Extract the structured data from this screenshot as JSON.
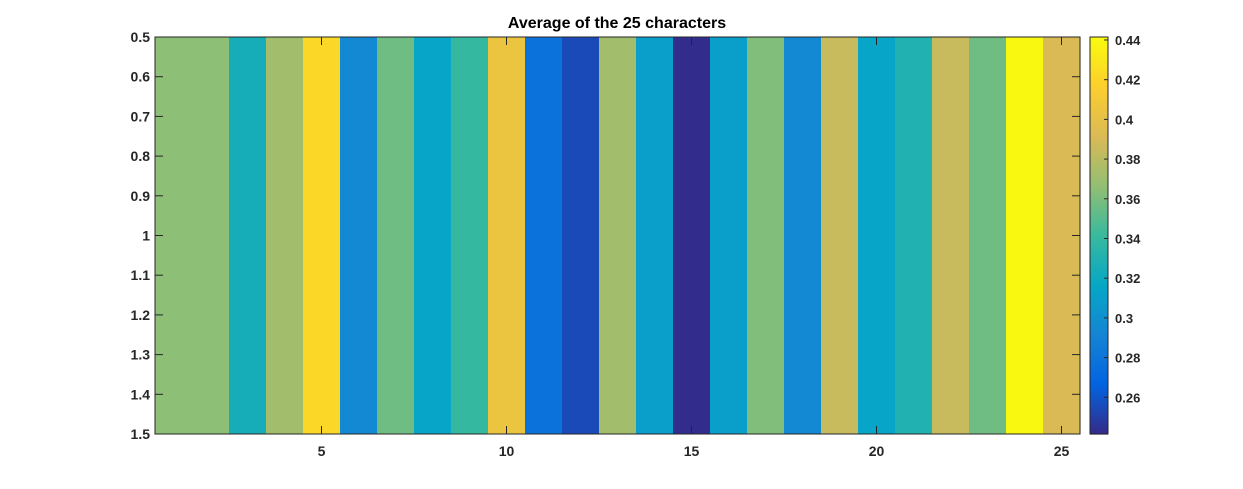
{
  "chart_data": {
    "type": "heatmap",
    "title": "Average of the 25 characters",
    "xlabel": "",
    "ylabel": "",
    "x": [
      1,
      2,
      3,
      4,
      5,
      6,
      7,
      8,
      9,
      10,
      11,
      12,
      13,
      14,
      15,
      16,
      17,
      18,
      19,
      20,
      21,
      22,
      23,
      24,
      25
    ],
    "values": [
      0.365,
      0.365,
      0.325,
      0.372,
      0.422,
      0.295,
      0.357,
      0.315,
      0.34,
      0.405,
      0.278,
      0.255,
      0.372,
      0.31,
      0.243,
      0.31,
      0.362,
      0.295,
      0.385,
      0.315,
      0.33,
      0.385,
      0.357,
      0.44,
      0.392
    ],
    "xlim": [
      0.5,
      25.5
    ],
    "ylim": [
      0.5,
      1.5
    ],
    "x_ticks": [
      5,
      10,
      15,
      20,
      25
    ],
    "x_tick_labels": [
      "5",
      "10",
      "15",
      "20",
      "25"
    ],
    "y_ticks": [
      0.5,
      0.6,
      0.7,
      0.8,
      0.9,
      1.0,
      1.1,
      1.2,
      1.3,
      1.4,
      1.5
    ],
    "y_tick_labels": [
      "0.5",
      "0.6",
      "0.7",
      "0.8",
      "0.9",
      "1",
      "1.1",
      "1.2",
      "1.3",
      "1.4",
      "1.5"
    ],
    "colorbar": {
      "colormap": "parula",
      "clim": [
        0.2415,
        0.4415
      ],
      "ticks": [
        0.26,
        0.28,
        0.3,
        0.32,
        0.34,
        0.36,
        0.38,
        0.4,
        0.42,
        0.44
      ],
      "tick_labels": [
        "0.26",
        "0.28",
        "0.3",
        "0.32",
        "0.34",
        "0.36",
        "0.38",
        "0.4",
        "0.42",
        "0.44"
      ]
    },
    "grid": false,
    "y_axis_direction": "reverse"
  }
}
